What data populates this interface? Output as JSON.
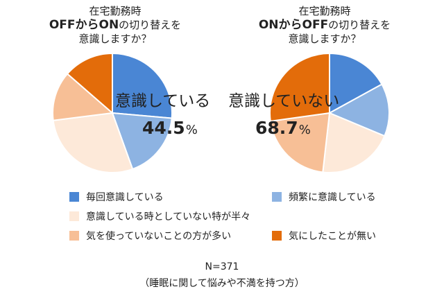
{
  "titles": {
    "left": {
      "line1": "在宅勤務時",
      "line2a": "OFFからON",
      "line2b": "の切り替えを",
      "line3": "意識しますか？"
    },
    "right": {
      "line1": "在宅勤務時",
      "line2a": "ONからOFF",
      "line2b": "の切り替えを",
      "line3": "意識しますか？"
    }
  },
  "colors": [
    "#4a86d4",
    "#8db3e2",
    "#fde9d9",
    "#f7bf96",
    "#e36c0a"
  ],
  "legend": [
    "毎回意識している",
    "頻繁に意識している",
    "意識している時としていない特が半々",
    "気を使っていないことの方が多い",
    "気にしたことが無い"
  ],
  "highlights": {
    "left": {
      "label": "意識している",
      "value": "44.5",
      "unit": "%"
    },
    "right": {
      "label": "意識していない",
      "value": "68.7",
      "unit": "%"
    }
  },
  "footer": {
    "n": "N=371",
    "note": "（睡眠に関して悩みや不満を持つ方）"
  },
  "chart_data": [
    {
      "type": "pie",
      "title": "在宅勤務時 OFFからONの切り替えを意識しますか？",
      "categories": [
        "毎回意識している",
        "頻繁に意識している",
        "意識している時としていない特が半々",
        "気を使っていないことの方が多い",
        "気にしたことが無い"
      ],
      "values": [
        26.4,
        18.1,
        28.5,
        13.4,
        13.6
      ],
      "annotation": "意識している 44.5%"
    },
    {
      "type": "pie",
      "title": "在宅勤務時 ONからOFFの切り替えを意識しますか？",
      "categories": [
        "毎回意識している",
        "頻繁に意識している",
        "意識している時としていない特が半々",
        "気を使っていないことの方が多い",
        "気にしたことが無い"
      ],
      "values": [
        17.0,
        14.3,
        20.5,
        21.0,
        27.2
      ],
      "annotation": "意識していない 68.7%"
    }
  ]
}
